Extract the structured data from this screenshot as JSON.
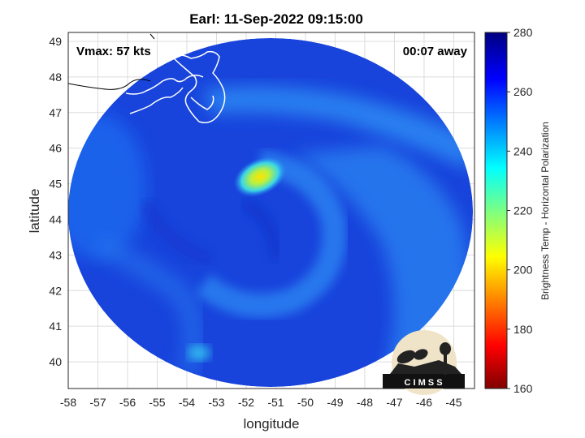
{
  "title": "Earl: 11-Sep-2022 09:15:00",
  "vmax_label": "Vmax: 57 kts",
  "time_away_label": "00:07 away",
  "logo_text": "C I M S S",
  "chart_data": {
    "type": "heatmap",
    "xlabel": "longitude",
    "ylabel": "latitude",
    "xlim": [
      -58,
      -44.3
    ],
    "ylim": [
      39.25,
      49.25
    ],
    "x_ticks": [
      -58,
      -57,
      -56,
      -55,
      -54,
      -53,
      -52,
      -51,
      -50,
      -49,
      -48,
      -47,
      -46,
      -45
    ],
    "y_ticks": [
      40,
      41,
      42,
      43,
      44,
      45,
      46,
      47,
      48,
      49
    ],
    "grid": true,
    "colorbar": {
      "label": "Brightness Temp - Horizontal Polarization",
      "range": [
        160,
        280
      ],
      "ticks": [
        160,
        180,
        200,
        220,
        240,
        260,
        280
      ],
      "colormap": "jet"
    },
    "field": {
      "background_value": 264,
      "features": [
        {
          "type": "warm-core-min",
          "lon": -51.5,
          "lat": 45.2,
          "value": 206
        },
        {
          "type": "cloud-band",
          "value": 245
        },
        {
          "type": "spiral-arm",
          "value": 250
        }
      ]
    }
  }
}
